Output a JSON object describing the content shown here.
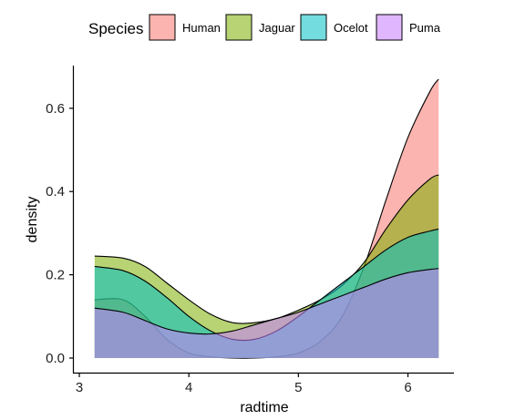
{
  "chart_data": {
    "type": "area",
    "subtype": "density",
    "xlabel": "radtime",
    "ylabel": "density",
    "xlim": [
      3.14,
      6.28
    ],
    "ylim": [
      0,
      0.67
    ],
    "xticks": [
      3,
      4,
      5,
      6
    ],
    "yticks": [
      0.0,
      0.2,
      0.4,
      0.6
    ],
    "ytick_labels": [
      "0.0",
      "0.2",
      "0.4",
      "0.6"
    ],
    "grid": false,
    "legend": {
      "title": "Species",
      "position": "top"
    },
    "series": [
      {
        "name": "Human",
        "color": "#F8766D",
        "x": [
          3.14,
          3.4,
          3.6,
          3.8,
          4.0,
          4.2,
          4.4,
          4.6,
          4.8,
          5.0,
          5.2,
          5.4,
          5.6,
          5.8,
          6.0,
          6.2,
          6.28
        ],
        "y": [
          0.14,
          0.14,
          0.1,
          0.045,
          0.012,
          0.003,
          0.0,
          0.0,
          0.003,
          0.012,
          0.04,
          0.1,
          0.22,
          0.38,
          0.53,
          0.64,
          0.67
        ]
      },
      {
        "name": "Jaguar",
        "color": "#7CAE00",
        "x": [
          3.14,
          3.4,
          3.6,
          3.8,
          4.0,
          4.2,
          4.4,
          4.6,
          4.8,
          5.0,
          5.2,
          5.4,
          5.6,
          5.8,
          6.0,
          6.2,
          6.28
        ],
        "y": [
          0.245,
          0.24,
          0.22,
          0.18,
          0.14,
          0.105,
          0.085,
          0.085,
          0.095,
          0.115,
          0.14,
          0.175,
          0.23,
          0.31,
          0.38,
          0.43,
          0.44
        ]
      },
      {
        "name": "Ocelot",
        "color": "#00BFC4",
        "x": [
          3.14,
          3.4,
          3.6,
          3.8,
          4.0,
          4.2,
          4.4,
          4.6,
          4.8,
          5.0,
          5.2,
          5.4,
          5.6,
          5.8,
          6.0,
          6.2,
          6.28
        ],
        "y": [
          0.22,
          0.21,
          0.185,
          0.145,
          0.1,
          0.065,
          0.045,
          0.045,
          0.065,
          0.1,
          0.14,
          0.18,
          0.22,
          0.26,
          0.29,
          0.305,
          0.31
        ]
      },
      {
        "name": "Puma",
        "color": "#C77CFF",
        "x": [
          3.14,
          3.4,
          3.6,
          3.8,
          4.0,
          4.2,
          4.4,
          4.6,
          4.8,
          5.0,
          5.2,
          5.4,
          5.6,
          5.8,
          6.0,
          6.2,
          6.28
        ],
        "y": [
          0.12,
          0.11,
          0.09,
          0.07,
          0.06,
          0.058,
          0.065,
          0.08,
          0.095,
          0.11,
          0.13,
          0.15,
          0.17,
          0.19,
          0.205,
          0.213,
          0.215
        ]
      }
    ]
  }
}
